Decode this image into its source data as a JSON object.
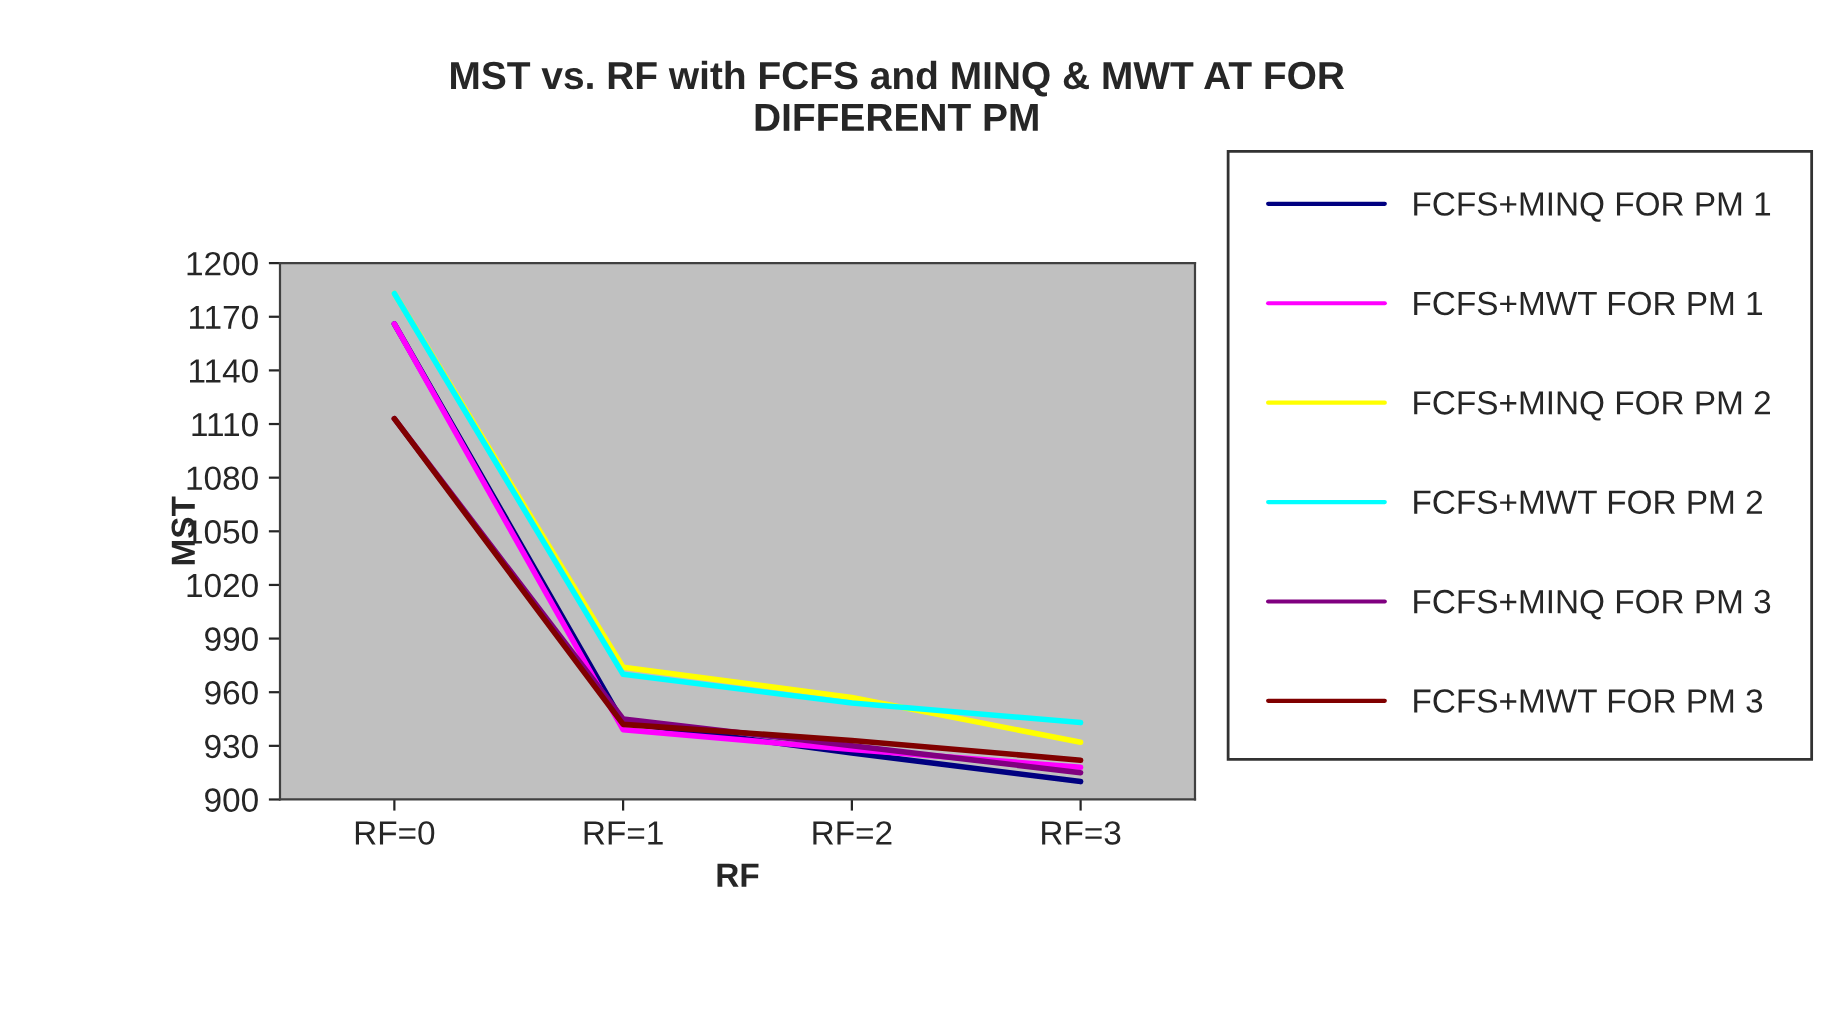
{
  "chart_data": {
    "type": "line",
    "title": "MST vs. RF with FCFS and MINQ & MWT AT FOR\nDIFFERENT PM",
    "xlabel": "RF",
    "ylabel": "MST",
    "categories": [
      "RF=0",
      "RF=1",
      "RF=2",
      "RF=3"
    ],
    "series": [
      {
        "name": "FCFS+MINQ FOR PM 1",
        "color": "#000080",
        "values": [
          1166,
          943,
          926,
          910
        ]
      },
      {
        "name": "FCFS+MWT FOR PM 1",
        "color": "#ff00ff",
        "values": [
          1166,
          939,
          928,
          918
        ]
      },
      {
        "name": "FCFS+MINQ FOR PM 2",
        "color": "#ffff00",
        "values": [
          1183,
          974,
          957,
          932
        ]
      },
      {
        "name": "FCFS+MWT FOR PM 2",
        "color": "#00ffff",
        "values": [
          1183,
          970,
          954,
          943
        ]
      },
      {
        "name": "FCFS+MINQ FOR PM 3",
        "color": "#800080",
        "values": [
          1113,
          945,
          930,
          915
        ]
      },
      {
        "name": "FCFS+MWT FOR PM 3",
        "color": "#800000",
        "values": [
          1113,
          942,
          933,
          922
        ]
      }
    ],
    "ylim": [
      900,
      1200
    ],
    "yticks": [
      900,
      930,
      960,
      990,
      1020,
      1050,
      1080,
      1110,
      1140,
      1170,
      1200
    ],
    "grid": false,
    "legend": "right",
    "marker": "none",
    "line_style": "solid"
  }
}
